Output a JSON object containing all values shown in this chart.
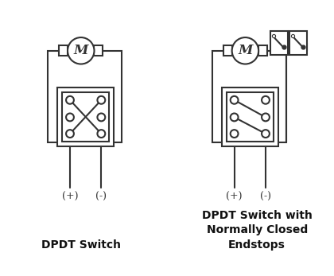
{
  "bg_color": "#ffffff",
  "text_color": "#111111",
  "line_color": "#333333",
  "label_left": "DPDT Switch",
  "label_right": "DPDT Switch with\nNormally Closed\nEndstops",
  "label_plus": "(+)",
  "label_minus": "(-)",
  "motor_label": "M"
}
